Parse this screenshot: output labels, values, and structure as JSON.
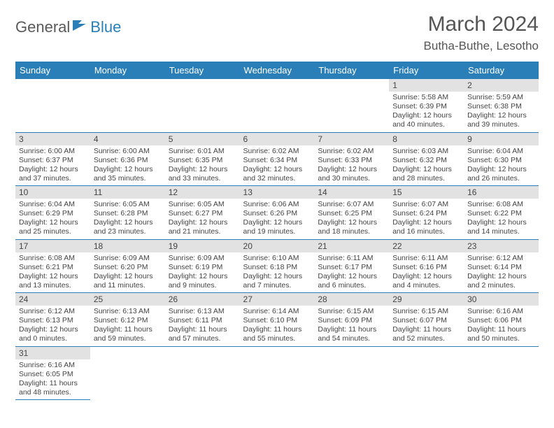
{
  "logo": {
    "part1": "General",
    "part2": "Blue"
  },
  "title": "March 2024",
  "location": "Butha-Buthe, Lesotho",
  "colors": {
    "header_bg": "#2a7fb8",
    "header_fg": "#ffffff",
    "daynum_bg": "#e2e2e2",
    "rule": "#2a7fb8"
  },
  "weekdays": [
    "Sunday",
    "Monday",
    "Tuesday",
    "Wednesday",
    "Thursday",
    "Friday",
    "Saturday"
  ],
  "weeks": [
    [
      null,
      null,
      null,
      null,
      null,
      {
        "n": "1",
        "sr": "Sunrise: 5:58 AM",
        "ss": "Sunset: 6:39 PM",
        "d1": "Daylight: 12 hours",
        "d2": "and 40 minutes."
      },
      {
        "n": "2",
        "sr": "Sunrise: 5:59 AM",
        "ss": "Sunset: 6:38 PM",
        "d1": "Daylight: 12 hours",
        "d2": "and 39 minutes."
      }
    ],
    [
      {
        "n": "3",
        "sr": "Sunrise: 6:00 AM",
        "ss": "Sunset: 6:37 PM",
        "d1": "Daylight: 12 hours",
        "d2": "and 37 minutes."
      },
      {
        "n": "4",
        "sr": "Sunrise: 6:00 AM",
        "ss": "Sunset: 6:36 PM",
        "d1": "Daylight: 12 hours",
        "d2": "and 35 minutes."
      },
      {
        "n": "5",
        "sr": "Sunrise: 6:01 AM",
        "ss": "Sunset: 6:35 PM",
        "d1": "Daylight: 12 hours",
        "d2": "and 33 minutes."
      },
      {
        "n": "6",
        "sr": "Sunrise: 6:02 AM",
        "ss": "Sunset: 6:34 PM",
        "d1": "Daylight: 12 hours",
        "d2": "and 32 minutes."
      },
      {
        "n": "7",
        "sr": "Sunrise: 6:02 AM",
        "ss": "Sunset: 6:33 PM",
        "d1": "Daylight: 12 hours",
        "d2": "and 30 minutes."
      },
      {
        "n": "8",
        "sr": "Sunrise: 6:03 AM",
        "ss": "Sunset: 6:32 PM",
        "d1": "Daylight: 12 hours",
        "d2": "and 28 minutes."
      },
      {
        "n": "9",
        "sr": "Sunrise: 6:04 AM",
        "ss": "Sunset: 6:30 PM",
        "d1": "Daylight: 12 hours",
        "d2": "and 26 minutes."
      }
    ],
    [
      {
        "n": "10",
        "sr": "Sunrise: 6:04 AM",
        "ss": "Sunset: 6:29 PM",
        "d1": "Daylight: 12 hours",
        "d2": "and 25 minutes."
      },
      {
        "n": "11",
        "sr": "Sunrise: 6:05 AM",
        "ss": "Sunset: 6:28 PM",
        "d1": "Daylight: 12 hours",
        "d2": "and 23 minutes."
      },
      {
        "n": "12",
        "sr": "Sunrise: 6:05 AM",
        "ss": "Sunset: 6:27 PM",
        "d1": "Daylight: 12 hours",
        "d2": "and 21 minutes."
      },
      {
        "n": "13",
        "sr": "Sunrise: 6:06 AM",
        "ss": "Sunset: 6:26 PM",
        "d1": "Daylight: 12 hours",
        "d2": "and 19 minutes."
      },
      {
        "n": "14",
        "sr": "Sunrise: 6:07 AM",
        "ss": "Sunset: 6:25 PM",
        "d1": "Daylight: 12 hours",
        "d2": "and 18 minutes."
      },
      {
        "n": "15",
        "sr": "Sunrise: 6:07 AM",
        "ss": "Sunset: 6:24 PM",
        "d1": "Daylight: 12 hours",
        "d2": "and 16 minutes."
      },
      {
        "n": "16",
        "sr": "Sunrise: 6:08 AM",
        "ss": "Sunset: 6:22 PM",
        "d1": "Daylight: 12 hours",
        "d2": "and 14 minutes."
      }
    ],
    [
      {
        "n": "17",
        "sr": "Sunrise: 6:08 AM",
        "ss": "Sunset: 6:21 PM",
        "d1": "Daylight: 12 hours",
        "d2": "and 13 minutes."
      },
      {
        "n": "18",
        "sr": "Sunrise: 6:09 AM",
        "ss": "Sunset: 6:20 PM",
        "d1": "Daylight: 12 hours",
        "d2": "and 11 minutes."
      },
      {
        "n": "19",
        "sr": "Sunrise: 6:09 AM",
        "ss": "Sunset: 6:19 PM",
        "d1": "Daylight: 12 hours",
        "d2": "and 9 minutes."
      },
      {
        "n": "20",
        "sr": "Sunrise: 6:10 AM",
        "ss": "Sunset: 6:18 PM",
        "d1": "Daylight: 12 hours",
        "d2": "and 7 minutes."
      },
      {
        "n": "21",
        "sr": "Sunrise: 6:11 AM",
        "ss": "Sunset: 6:17 PM",
        "d1": "Daylight: 12 hours",
        "d2": "and 6 minutes."
      },
      {
        "n": "22",
        "sr": "Sunrise: 6:11 AM",
        "ss": "Sunset: 6:16 PM",
        "d1": "Daylight: 12 hours",
        "d2": "and 4 minutes."
      },
      {
        "n": "23",
        "sr": "Sunrise: 6:12 AM",
        "ss": "Sunset: 6:14 PM",
        "d1": "Daylight: 12 hours",
        "d2": "and 2 minutes."
      }
    ],
    [
      {
        "n": "24",
        "sr": "Sunrise: 6:12 AM",
        "ss": "Sunset: 6:13 PM",
        "d1": "Daylight: 12 hours",
        "d2": "and 0 minutes."
      },
      {
        "n": "25",
        "sr": "Sunrise: 6:13 AM",
        "ss": "Sunset: 6:12 PM",
        "d1": "Daylight: 11 hours",
        "d2": "and 59 minutes."
      },
      {
        "n": "26",
        "sr": "Sunrise: 6:13 AM",
        "ss": "Sunset: 6:11 PM",
        "d1": "Daylight: 11 hours",
        "d2": "and 57 minutes."
      },
      {
        "n": "27",
        "sr": "Sunrise: 6:14 AM",
        "ss": "Sunset: 6:10 PM",
        "d1": "Daylight: 11 hours",
        "d2": "and 55 minutes."
      },
      {
        "n": "28",
        "sr": "Sunrise: 6:15 AM",
        "ss": "Sunset: 6:09 PM",
        "d1": "Daylight: 11 hours",
        "d2": "and 54 minutes."
      },
      {
        "n": "29",
        "sr": "Sunrise: 6:15 AM",
        "ss": "Sunset: 6:07 PM",
        "d1": "Daylight: 11 hours",
        "d2": "and 52 minutes."
      },
      {
        "n": "30",
        "sr": "Sunrise: 6:16 AM",
        "ss": "Sunset: 6:06 PM",
        "d1": "Daylight: 11 hours",
        "d2": "and 50 minutes."
      }
    ],
    [
      {
        "n": "31",
        "sr": "Sunrise: 6:16 AM",
        "ss": "Sunset: 6:05 PM",
        "d1": "Daylight: 11 hours",
        "d2": "and 48 minutes."
      },
      null,
      null,
      null,
      null,
      null,
      null
    ]
  ]
}
